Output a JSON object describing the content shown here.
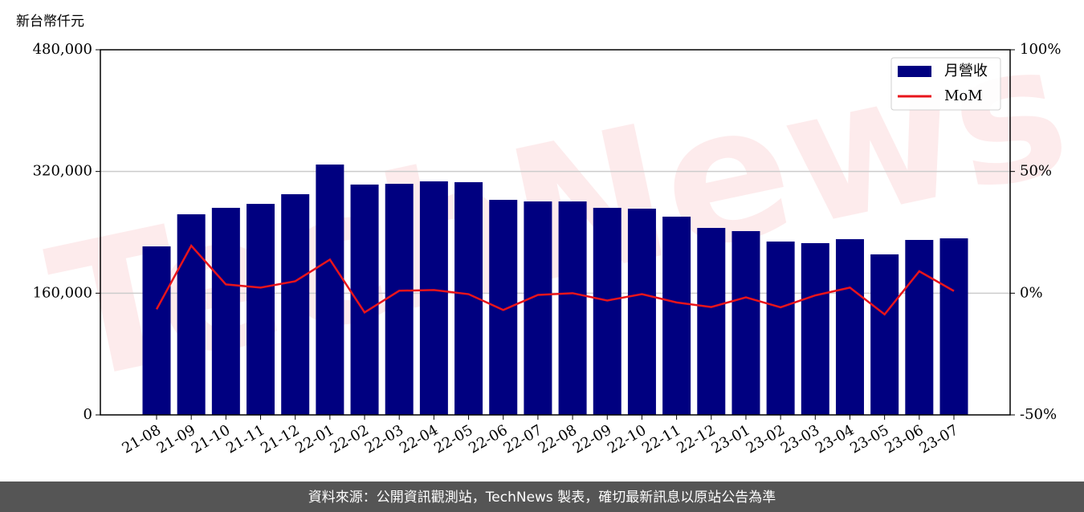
{
  "chart_data": {
    "type": "bar_line",
    "y_axis_label": "新台幣仟元",
    "watermark": "TechNews",
    "footer": "資料來源：公開資訊觀測站，TechNews 製表，確切最新訊息以原站公告為準",
    "categories": [
      "21-08",
      "21-09",
      "21-10",
      "21-11",
      "21-12",
      "22-01",
      "22-02",
      "22-03",
      "22-04",
      "22-05",
      "22-06",
      "22-07",
      "22-08",
      "22-09",
      "22-10",
      "22-11",
      "22-12",
      "23-01",
      "23-02",
      "23-03",
      "23-04",
      "23-05",
      "23-06",
      "23-07"
    ],
    "series": [
      {
        "name": "月營收",
        "type": "bar",
        "color": "#000080",
        "values": [
          221500,
          263700,
          272200,
          277400,
          290100,
          329100,
          302800,
          303800,
          307000,
          305900,
          282700,
          280600,
          280600,
          272200,
          271100,
          260600,
          245800,
          241600,
          227900,
          225800,
          231000,
          211000,
          230000,
          232100
        ]
      },
      {
        "name": "MoM",
        "type": "line",
        "color": "#e8141b",
        "axis": "y2",
        "values": [
          -6.6,
          19.5,
          3.6,
          2.3,
          4.9,
          13.8,
          -7.9,
          1.0,
          1.3,
          -0.4,
          -6.9,
          -0.7,
          0,
          -3.0,
          -0.4,
          -3.8,
          -5.7,
          -1.7,
          -5.8,
          -0.9,
          2.3,
          -8.7,
          9.0,
          0.9
        ]
      }
    ],
    "ylim": [
      0,
      480000
    ],
    "yticks": [
      0,
      {
        "value": 160000,
        "label": "160,000"
      },
      {
        "value": 320000,
        "label": "320,000"
      },
      {
        "value": 480000,
        "label": "480,000"
      }
    ],
    "y2lim": [
      -50,
      100
    ],
    "y2ticks": [
      {
        "value": -50,
        "label": "-50%"
      },
      {
        "value": 0,
        "label": "0%"
      },
      {
        "value": 50,
        "label": "50%"
      },
      {
        "value": 100,
        "label": "100%"
      }
    ],
    "grid": true,
    "legend": "upper right"
  }
}
